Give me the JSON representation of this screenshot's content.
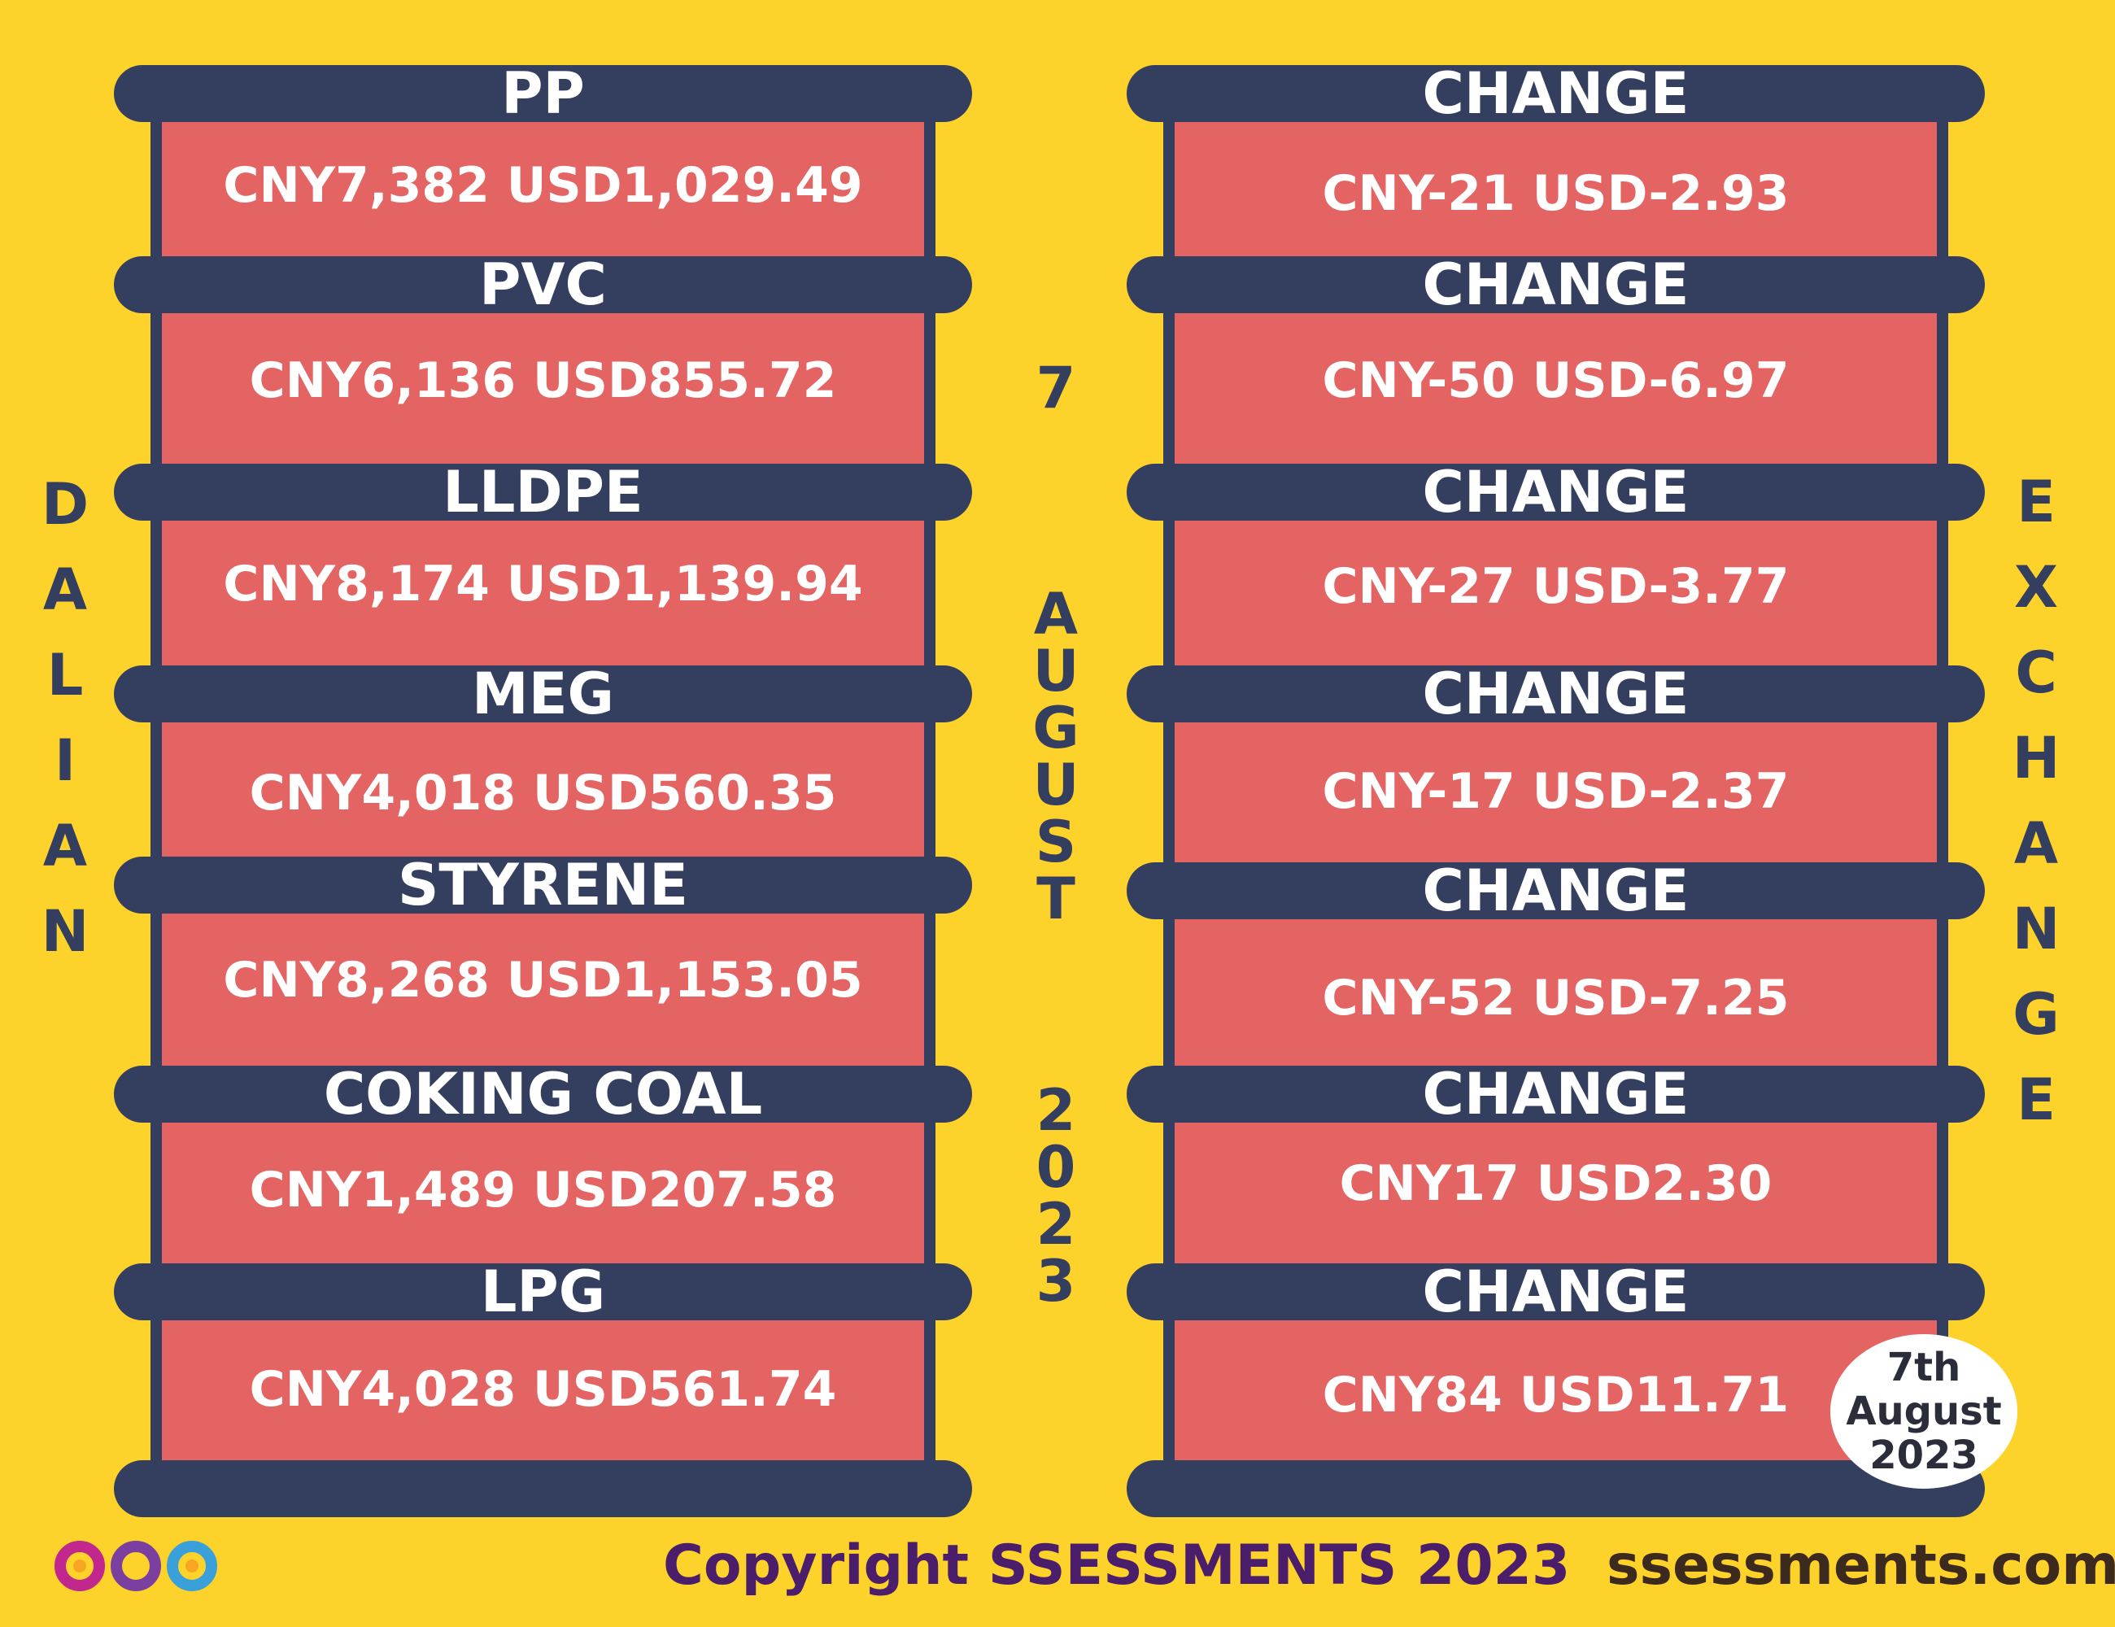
{
  "left_label": [
    "D",
    "A",
    "L",
    "I",
    "A",
    "N"
  ],
  "right_label": [
    "E",
    "X",
    "C",
    "H",
    "A",
    "N",
    "G",
    "E"
  ],
  "center_date": {
    "day": [
      "7"
    ],
    "month": [
      "A",
      "U",
      "G",
      "U",
      "S",
      "T"
    ],
    "year": [
      "2",
      "0",
      "2",
      "3"
    ]
  },
  "products": [
    {
      "name": "PP",
      "value": "CNY7,382  USD1,029.49"
    },
    {
      "name": "PVC",
      "value": "CNY6,136  USD855.72"
    },
    {
      "name": "LLDPE",
      "value": "CNY8,174  USD1,139.94"
    },
    {
      "name": "MEG",
      "value": "CNY4,018  USD560.35"
    },
    {
      "name": "STYRENE",
      "value": "CNY8,268  USD1,153.05"
    },
    {
      "name": "COKING COAL",
      "value": "CNY1,489  USD207.58"
    },
    {
      "name": "LPG",
      "value": "CNY4,028  USD561.74"
    }
  ],
  "changes": [
    {
      "label": "CHANGE",
      "value": "CNY-21  USD-2.93"
    },
    {
      "label": "CHANGE",
      "value": "CNY-50  USD-6.97"
    },
    {
      "label": "CHANGE",
      "value": "CNY-27  USD-3.77"
    },
    {
      "label": "CHANGE",
      "value": "CNY-17  USD-2.37"
    },
    {
      "label": "CHANGE",
      "value": "CNY-52  USD-7.25"
    },
    {
      "label": "CHANGE",
      "value": "CNY17  USD2.30"
    },
    {
      "label": "CHANGE",
      "value": "CNY84  USD11.71"
    }
  ],
  "badge": {
    "line1": "7th",
    "line2": "August",
    "line3": "2023"
  },
  "footer": {
    "copyright": "Copyright SSESSMENTS 2023",
    "website": "ssessments.com"
  },
  "colors": {
    "background": "#FDD22A",
    "bar": "#343E5F",
    "cell": "#E36462",
    "text_dark": "#343E5F",
    "footer_text": "#4A1E6B"
  }
}
